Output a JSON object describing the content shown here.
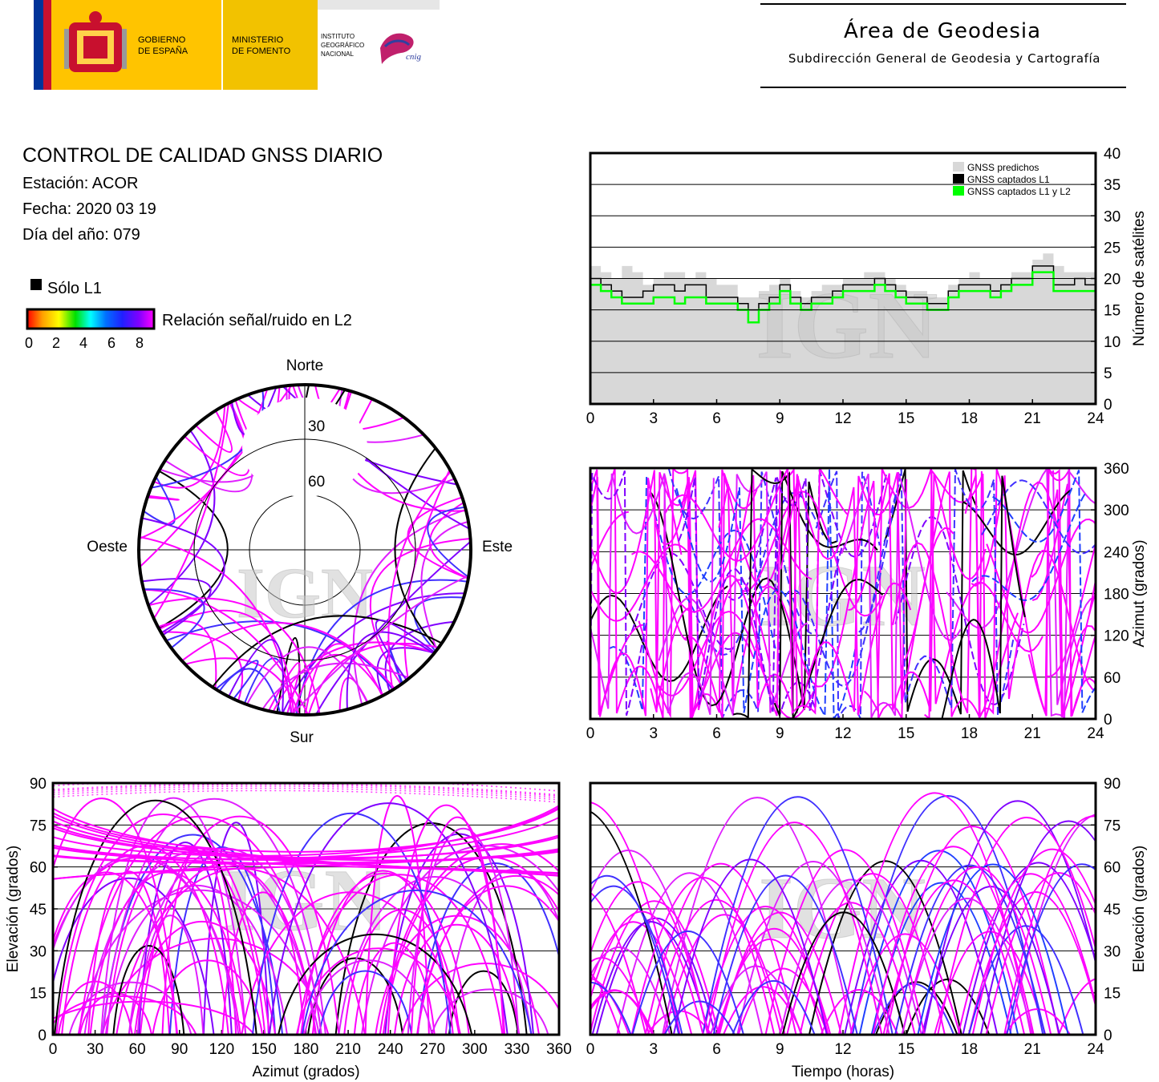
{
  "header": {
    "logo_gov_line1": "GOBIERNO",
    "logo_gov_line2": "DE ESPAÑA",
    "logo_min_line1": "MINISTERIO",
    "logo_min_line2": "DE FOMENTO",
    "logo_ign_line1": "INSTITUTO",
    "logo_ign_line2": "GEOGRÁFICO",
    "logo_ign_line3": "NACIONAL",
    "logo_cnig": "cnig",
    "area_title": "Área de Geodesia",
    "area_subtitle": "Subdirección General de Geodesia y Cartografía",
    "colors": {
      "flag_red": "#c8102e",
      "flag_yellow": "#ffc400",
      "logo_bar": "#f2c200",
      "eu_blue": "#003399"
    }
  },
  "report": {
    "title": "CONTROL DE CALIDAD GNSS DIARIO",
    "station": "Estación: ACOR",
    "date": "Fecha: 2020 03 19",
    "doy": "Día del año: 079"
  },
  "legend": {
    "only_l1": "Sólo L1",
    "snr_label": "Relación señal/ruido en L2",
    "snr_ticks": [
      "0",
      "2",
      "4",
      "6",
      "8"
    ],
    "snr_range": [
      0,
      8
    ],
    "snr_colors": [
      "#ff0000",
      "#ffa000",
      "#ffff00",
      "#00e000",
      "#00ffff",
      "#0070ff",
      "#2020ff",
      "#8000ff",
      "#ff00ff"
    ]
  },
  "watermark": "IGN",
  "chart_data": [
    {
      "id": "satellite-count",
      "type": "step-line",
      "ylabel": "Número de satélites",
      "x_ticks": [
        "0",
        "3",
        "6",
        "9",
        "12",
        "15",
        "18",
        "21",
        "24"
      ],
      "y_ticks": [
        "0",
        "5",
        "10",
        "15",
        "20",
        "25",
        "30",
        "35",
        "40"
      ],
      "xlim": [
        0,
        24
      ],
      "ylim": [
        0,
        40
      ],
      "grid": true,
      "legend_position": "top-right",
      "x": [
        0,
        0.5,
        1,
        1.5,
        2,
        2.5,
        3,
        3.5,
        4,
        4.5,
        5,
        5.5,
        6,
        6.5,
        7,
        7.5,
        8,
        8.5,
        9,
        9.5,
        10,
        10.5,
        11,
        11.5,
        12,
        12.5,
        13,
        13.5,
        14,
        14.5,
        15,
        15.5,
        16,
        16.5,
        17,
        17.5,
        18,
        18.5,
        19,
        19.5,
        20,
        20.5,
        21,
        21.5,
        22,
        22.5,
        23,
        23.5,
        24
      ],
      "series": [
        {
          "name": "GNSS predichos",
          "color": "#d8d8d8",
          "values": [
            22,
            21,
            20,
            22,
            21,
            19,
            20,
            21,
            21,
            20,
            21,
            20,
            19,
            19,
            17,
            17,
            18,
            19,
            20,
            18,
            17,
            18,
            19,
            19,
            20,
            20,
            21,
            21,
            20,
            19,
            18,
            18,
            17,
            17,
            19,
            20,
            21,
            20,
            20,
            20,
            21,
            21,
            23,
            24,
            22,
            21,
            21,
            21,
            20
          ]
        },
        {
          "name": "GNSS captados L1",
          "color": "#000000",
          "values": [
            20,
            19,
            18,
            17,
            17,
            18,
            19,
            19,
            18,
            19,
            19,
            17,
            17,
            17,
            16,
            15,
            16,
            17,
            19,
            17,
            16,
            17,
            17,
            18,
            19,
            19,
            19,
            20,
            19,
            18,
            17,
            17,
            16,
            16,
            18,
            19,
            19,
            19,
            18,
            19,
            20,
            20,
            22,
            22,
            19,
            19,
            20,
            19,
            19
          ]
        },
        {
          "name": "GNSS captados L1 y L2",
          "color": "#00ff00",
          "values": [
            19,
            18,
            17,
            16,
            16,
            16,
            17,
            17,
            16,
            17,
            17,
            16,
            16,
            16,
            15,
            13,
            15,
            16,
            18,
            16,
            15,
            16,
            16,
            17,
            18,
            18,
            18,
            19,
            18,
            17,
            16,
            16,
            15,
            15,
            17,
            18,
            18,
            18,
            17,
            18,
            19,
            19,
            21,
            21,
            18,
            18,
            18,
            18,
            18
          ]
        }
      ]
    },
    {
      "id": "azimuth-time",
      "type": "scatter",
      "ylabel": "Azimut (grados)",
      "x_ticks": [
        "0",
        "3",
        "6",
        "9",
        "12",
        "15",
        "18",
        "21",
        "24"
      ],
      "y_ticks": [
        "0",
        "60",
        "120",
        "180",
        "240",
        "300",
        "360"
      ],
      "xlim": [
        0,
        24
      ],
      "ylim": [
        0,
        360
      ],
      "grid": true
    },
    {
      "id": "skyplot",
      "type": "polar-scatter",
      "direction_labels": {
        "north": "Norte",
        "south": "Sur",
        "east": "Este",
        "west": "Oeste"
      },
      "ring_labels": [
        "30",
        "60"
      ]
    },
    {
      "id": "elevation-azimuth",
      "type": "scatter",
      "xlabel": "Azimut (grados)",
      "ylabel": "Elevación (grados)",
      "x_ticks": [
        "0",
        "30",
        "60",
        "90",
        "120",
        "150",
        "180",
        "210",
        "240",
        "270",
        "300",
        "330",
        "360"
      ],
      "y_ticks": [
        "0",
        "15",
        "30",
        "45",
        "60",
        "75",
        "90"
      ],
      "xlim": [
        0,
        360
      ],
      "ylim": [
        0,
        90
      ],
      "grid": true
    },
    {
      "id": "elevation-time",
      "type": "scatter",
      "xlabel": "Tiempo (horas)",
      "ylabel": "Elevación (grados)",
      "x_ticks": [
        "0",
        "3",
        "6",
        "9",
        "12",
        "15",
        "18",
        "21",
        "24"
      ],
      "y_ticks": [
        "0",
        "15",
        "30",
        "45",
        "60",
        "75",
        "90"
      ],
      "xlim": [
        0,
        24
      ],
      "ylim": [
        0,
        90
      ],
      "grid": true
    }
  ]
}
